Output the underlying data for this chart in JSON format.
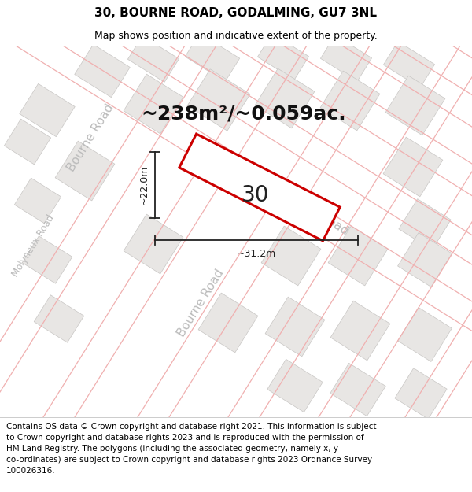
{
  "title": "30, BOURNE ROAD, GODALMING, GU7 3NL",
  "subtitle": "Map shows position and indicative extent of the property.",
  "area_text": "~238m²/~0.059ac.",
  "property_number": "30",
  "dim_width": "~31.2m",
  "dim_height": "~22.0m",
  "copyright_text": "Contains OS data © Crown copyright and database right 2021. This information is subject\nto Crown copyright and database rights 2023 and is reproduced with the permission of\nHM Land Registry. The polygons (including the associated geometry, namely x, y\nco-ordinates) are subject to Crown copyright and database rights 2023 Ordnance Survey\n100026316.",
  "bg_color": "#ffffff",
  "map_bg": "#f8f7f5",
  "building_color": "#e8e6e4",
  "building_edge": "#c8c6c4",
  "road_line_color": "#f0b0b0",
  "road_fill_color": "#ffffff",
  "property_fill": "#ffffff",
  "property_edge": "#cc0000",
  "title_fontsize": 11,
  "subtitle_fontsize": 9,
  "area_fontsize": 18,
  "label_fontsize": 9,
  "copyright_fontsize": 7.5,
  "road_label_color": "#bbbbbb",
  "road_label_fontsize": 11,
  "number_fontsize": 20
}
